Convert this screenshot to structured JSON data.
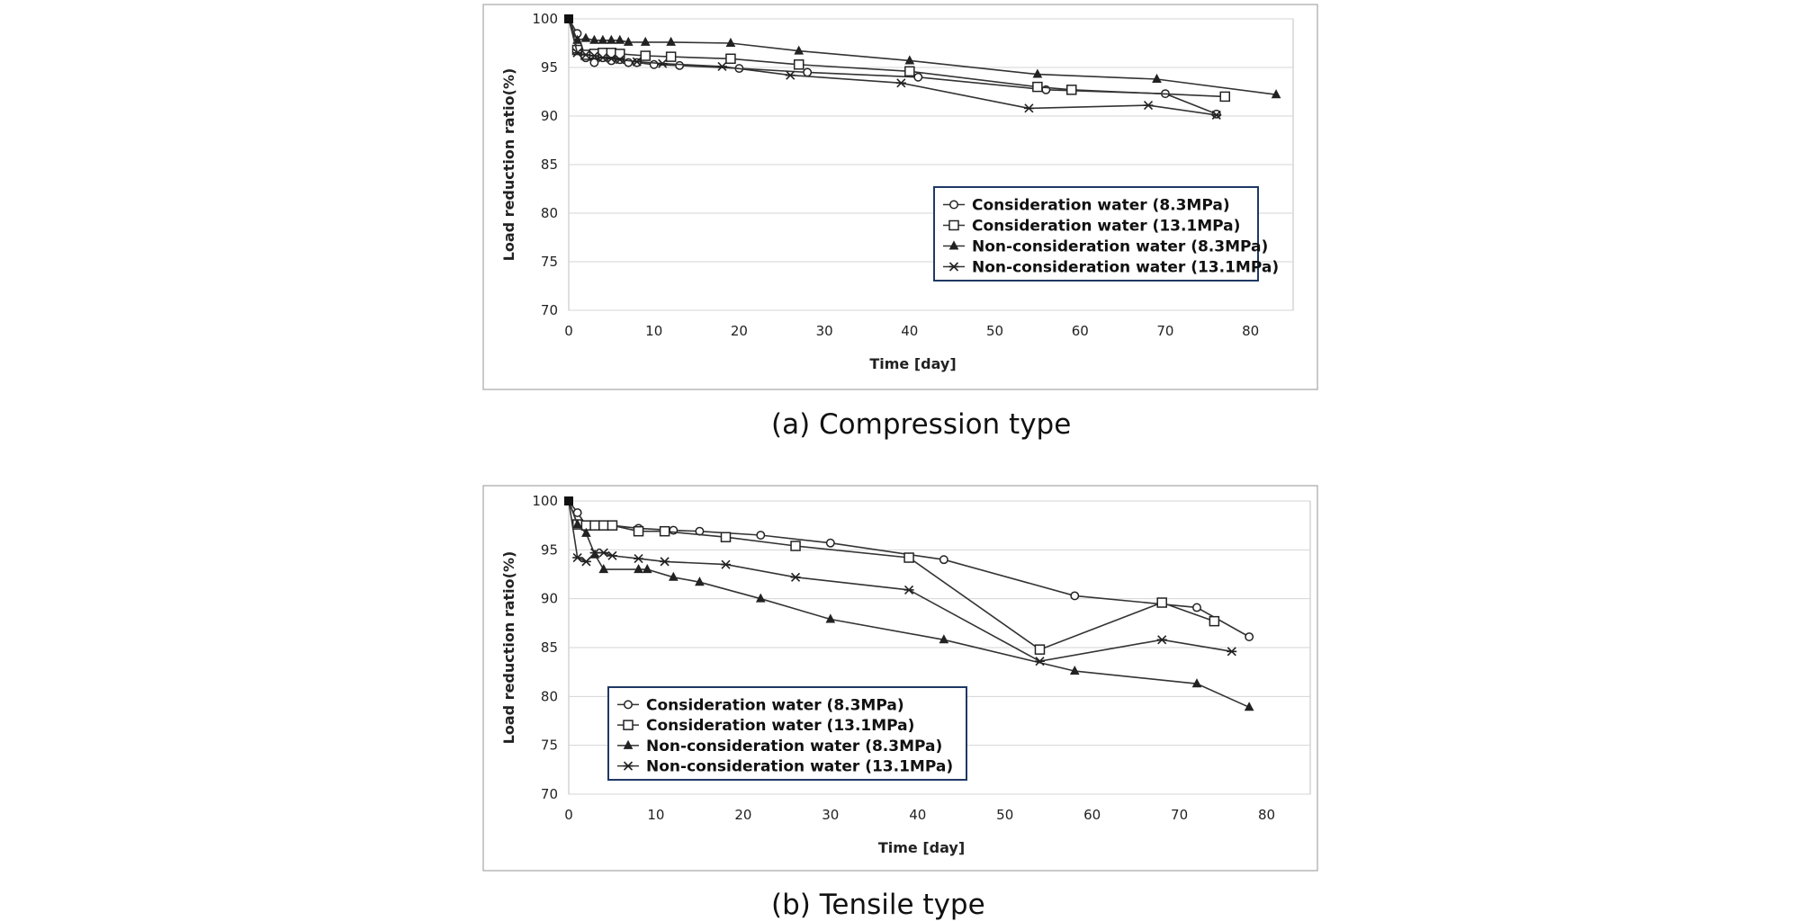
{
  "figures": [
    {
      "caption": "(a) Compression type"
    },
    {
      "caption": "(b) Tensile type"
    }
  ],
  "chart_data": [
    {
      "type": "line",
      "title": "(a) Compression type",
      "xlabel": "Time [day]",
      "ylabel": "Load reduction ratio(%)",
      "xlim": [
        0,
        85
      ],
      "ylim": [
        70,
        100
      ],
      "xticks": [
        0,
        10,
        20,
        30,
        40,
        50,
        60,
        70,
        80
      ],
      "yticks": [
        70,
        75,
        80,
        85,
        90,
        95,
        100
      ],
      "legend_position": "lower-right",
      "series": [
        {
          "name": "Consideration water (8.3MPa)",
          "marker": "circle",
          "x": [
            0,
            1,
            2,
            3,
            4,
            5,
            6,
            7,
            8,
            10,
            13,
            20,
            28,
            41,
            56,
            70,
            76
          ],
          "y": [
            100,
            98.5,
            96.0,
            95.5,
            96.0,
            95.7,
            95.8,
            95.5,
            95.5,
            95.3,
            95.2,
            94.9,
            94.5,
            94.0,
            92.7,
            92.3,
            90.2
          ]
        },
        {
          "name": "Consideration water (13.1MPa)",
          "marker": "square",
          "x": [
            0,
            1,
            2,
            3,
            4,
            5,
            6,
            9,
            12,
            19,
            27,
            40,
            55,
            59,
            77
          ],
          "y": [
            100,
            96.8,
            96.3,
            96.4,
            96.5,
            96.5,
            96.4,
            96.2,
            96.1,
            95.9,
            95.3,
            94.6,
            93.0,
            92.7,
            92.0
          ]
        },
        {
          "name": "Non-consideration water (8.3MPa)",
          "marker": "triangle",
          "x": [
            0,
            1,
            2,
            3,
            4,
            5,
            6,
            7,
            9,
            12,
            19,
            27,
            40,
            55,
            69,
            83
          ],
          "y": [
            100,
            97.8,
            98.0,
            97.8,
            97.8,
            97.8,
            97.8,
            97.6,
            97.6,
            97.6,
            97.5,
            96.7,
            95.7,
            94.3,
            93.8,
            92.2
          ]
        },
        {
          "name": "Non-consideration water (13.1MPa)",
          "marker": "x",
          "x": [
            0,
            1,
            2,
            3,
            4,
            5,
            6,
            8,
            11,
            18,
            26,
            39,
            54,
            68,
            76
          ],
          "y": [
            100,
            96.5,
            96.3,
            96.2,
            96.0,
            95.9,
            95.8,
            95.6,
            95.4,
            95.1,
            94.2,
            93.4,
            90.8,
            91.1,
            90.1
          ]
        }
      ]
    },
    {
      "type": "line",
      "title": "(b) Tensile type",
      "xlabel": "Time [day]",
      "ylabel": "Load reduction ratio(%)",
      "xlim": [
        0,
        85
      ],
      "ylim": [
        70,
        100
      ],
      "xticks": [
        0,
        10,
        20,
        30,
        40,
        50,
        60,
        70,
        80
      ],
      "yticks": [
        70,
        75,
        80,
        85,
        90,
        95,
        100
      ],
      "legend_position": "lower-left",
      "series": [
        {
          "name": "Consideration water (8.3MPa)",
          "marker": "circle",
          "x": [
            0,
            1,
            2,
            3,
            4,
            5,
            8,
            12,
            15,
            22,
            30,
            43,
            58,
            72,
            78
          ],
          "y": [
            100,
            98.8,
            97.5,
            97.5,
            97.5,
            97.5,
            97.2,
            97.0,
            96.9,
            96.5,
            95.7,
            94.0,
            90.3,
            89.1,
            86.1
          ]
        },
        {
          "name": "Consideration water (13.1MPa)",
          "marker": "square",
          "x": [
            0,
            1,
            2,
            3,
            4,
            5,
            8,
            11,
            18,
            26,
            39,
            54,
            68,
            74
          ],
          "y": [
            100,
            97.6,
            97.5,
            97.5,
            97.5,
            97.5,
            96.9,
            96.9,
            96.3,
            95.4,
            94.2,
            84.8,
            89.6,
            87.7
          ]
        },
        {
          "name": "Non-consideration water (8.3MPa)",
          "marker": "triangle",
          "x": [
            0,
            1,
            2,
            3,
            4,
            8,
            9,
            12,
            15,
            22,
            30,
            43,
            58,
            72,
            78
          ],
          "y": [
            100,
            97.6,
            96.7,
            94.5,
            93.0,
            93.0,
            93.0,
            92.2,
            91.7,
            90.0,
            87.9,
            85.8,
            82.6,
            81.3,
            78.9
          ]
        },
        {
          "name": "Non-consideration water (13.1MPa)",
          "marker": "x",
          "x": [
            0,
            1,
            2,
            3,
            4,
            5,
            8,
            11,
            18,
            26,
            39,
            54,
            68,
            76
          ],
          "y": [
            100,
            94.2,
            93.8,
            94.7,
            94.7,
            94.4,
            94.1,
            93.8,
            93.5,
            92.2,
            90.9,
            83.6,
            85.8,
            84.6
          ]
        }
      ]
    }
  ]
}
